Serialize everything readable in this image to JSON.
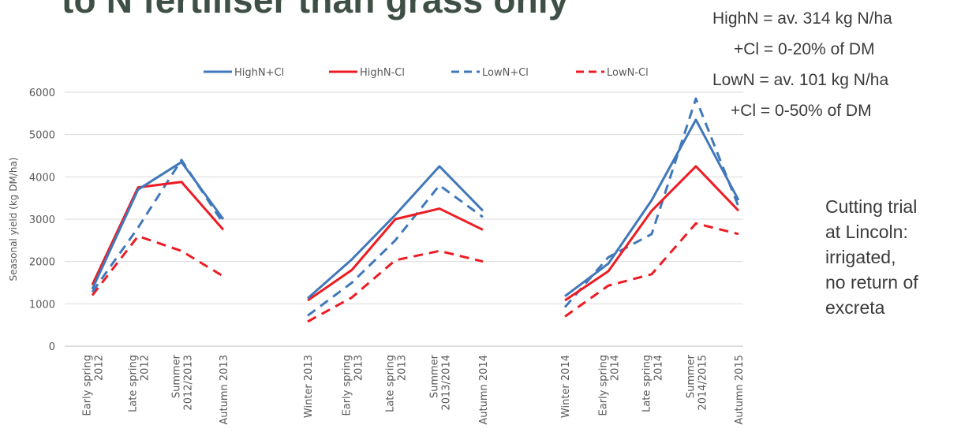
{
  "slide": {
    "title": "to N fertiliser than grass only",
    "notes": [
      "HighN = av. 314 kg N/ha",
      "+Cl = 0-20% of DM",
      "LowN = av. 101 kg N/ha",
      "+Cl = 0-50% of DM"
    ],
    "side_text": [
      "Cutting trial",
      "at Lincoln:",
      "irrigated,",
      "no return of",
      "excreta"
    ]
  },
  "chart_data": {
    "type": "line",
    "ylabel": "Seasonal yield (kg DM/ha)",
    "xlabel": "",
    "ylim": [
      0,
      6000
    ],
    "yticks": [
      0,
      1000,
      2000,
      3000,
      4000,
      5000,
      6000
    ],
    "grid": "horizontal",
    "legend_position": "top",
    "groups": [
      {
        "categories": [
          [
            "Early spring",
            "2012"
          ],
          [
            "Late spring",
            "2012"
          ],
          [
            "Summer",
            "2012/2013"
          ],
          [
            "Autumn  2013"
          ]
        ]
      },
      {
        "categories": [
          [
            "Winter  2013"
          ],
          [
            "Early spring",
            "2013"
          ],
          [
            "Late spring",
            "2013"
          ],
          [
            "Summer",
            "2013/2014"
          ],
          [
            "Autumn  2014"
          ]
        ]
      },
      {
        "categories": [
          [
            "Winter  2014"
          ],
          [
            "Early spring",
            "2014"
          ],
          [
            "Late spring",
            "2014"
          ],
          [
            "Summer",
            "2014/2015"
          ],
          [
            "Autumn  2015"
          ]
        ]
      }
    ],
    "series": [
      {
        "name": "HighN+Cl",
        "color": "#4178b9",
        "dash": false,
        "values": [
          [
            1350,
            3700,
            4350,
            3000
          ],
          [
            1130,
            2050,
            3100,
            4250,
            3200
          ],
          [
            1180,
            1950,
            3450,
            5350,
            3450
          ]
        ]
      },
      {
        "name": "HighN-Cl",
        "color": "#ed1c24",
        "dash": false,
        "values": [
          [
            1450,
            3750,
            3880,
            2750
          ],
          [
            1080,
            1800,
            3000,
            3250,
            2750
          ],
          [
            1080,
            1770,
            3200,
            4250,
            3200
          ]
        ]
      },
      {
        "name": "LowN+Cl",
        "color": "#4178b9",
        "dash": true,
        "values": [
          [
            1280,
            2800,
            4400,
            2900
          ],
          [
            720,
            1500,
            2500,
            3800,
            3050
          ],
          [
            920,
            2100,
            2650,
            5850,
            3300
          ]
        ]
      },
      {
        "name": "LowN-Cl",
        "color": "#ed1c24",
        "dash": true,
        "values": [
          [
            1200,
            2600,
            2250,
            1650
          ],
          [
            580,
            1150,
            2030,
            2250,
            2000
          ],
          [
            700,
            1430,
            1700,
            2900,
            2650
          ]
        ]
      }
    ]
  }
}
